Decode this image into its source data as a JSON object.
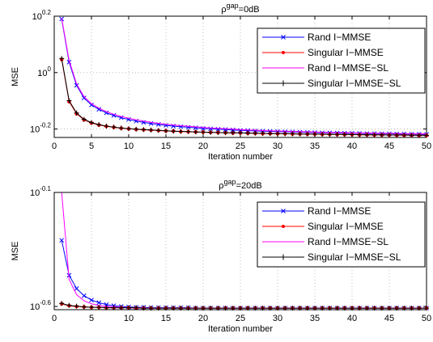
{
  "chart_data": [
    {
      "type": "line",
      "title_prefix": "ρ",
      "title_sup": "gap",
      "title_suffix": "=0dB",
      "xlabel": "Iteration number",
      "ylabel": "MSE",
      "yscale": "log",
      "xlim": [
        0,
        50
      ],
      "ylim": [
        0.589,
        1.585
      ],
      "xticks": [
        0,
        5,
        10,
        15,
        20,
        25,
        30,
        35,
        40,
        45,
        50
      ],
      "yticks": [
        {
          "value": 0.631,
          "base": "10",
          "exp": "-0.2"
        },
        {
          "value": 1.0,
          "base": "10",
          "exp": "0"
        },
        {
          "value": 1.585,
          "base": "10",
          "exp": "0.2"
        }
      ],
      "grid": true,
      "legend_position": "top-right",
      "x": [
        1,
        2,
        3,
        4,
        5,
        6,
        7,
        8,
        9,
        10,
        11,
        12,
        13,
        14,
        15,
        16,
        17,
        18,
        19,
        20,
        21,
        22,
        23,
        24,
        25,
        26,
        27,
        28,
        29,
        30,
        31,
        32,
        33,
        34,
        35,
        36,
        37,
        38,
        39,
        40,
        41,
        42,
        43,
        44,
        45,
        46,
        47,
        48,
        49,
        50
      ],
      "series": [
        {
          "name": "Rand I−MMSE",
          "color": "#0000ff",
          "marker": "x",
          "values": [
            1.549,
            1.089,
            0.901,
            0.813,
            0.768,
            0.741,
            0.72,
            0.705,
            0.692,
            0.682,
            0.673,
            0.666,
            0.66,
            0.655,
            0.65,
            0.646,
            0.643,
            0.64,
            0.637,
            0.634,
            0.632,
            0.63,
            0.628,
            0.626,
            0.624,
            0.623,
            0.621,
            0.62,
            0.619,
            0.618,
            0.617,
            0.616,
            0.615,
            0.614,
            0.613,
            0.612,
            0.612,
            0.611,
            0.61,
            0.61,
            0.609,
            0.608,
            0.608,
            0.607,
            0.607,
            0.606,
            0.606,
            0.605,
            0.605,
            0.604
          ]
        },
        {
          "name": "Singular I−MMSE",
          "color": "#ff0000",
          "marker": "dot",
          "values": [
            1.113,
            0.789,
            0.715,
            0.68,
            0.663,
            0.652,
            0.645,
            0.64,
            0.635,
            0.632,
            0.629,
            0.627,
            0.625,
            0.623,
            0.621,
            0.62,
            0.618,
            0.617,
            0.616,
            0.615,
            0.614,
            0.613,
            0.612,
            0.611,
            0.611,
            0.61,
            0.609,
            0.608,
            0.608,
            0.607,
            0.607,
            0.606,
            0.606,
            0.605,
            0.605,
            0.604,
            0.604,
            0.603,
            0.603,
            0.603,
            0.602,
            0.602,
            0.601,
            0.601,
            0.601,
            0.6,
            0.6,
            0.6,
            0.599,
            0.599
          ]
        },
        {
          "name": "Rand I−MMSE−SL",
          "color": "#ff00ff",
          "marker": "none",
          "values": [
            1.56,
            1.105,
            0.912,
            0.822,
            0.776,
            0.748,
            0.727,
            0.712,
            0.699,
            0.689,
            0.68,
            0.673,
            0.667,
            0.661,
            0.656,
            0.652,
            0.648,
            0.645,
            0.642,
            0.639,
            0.636,
            0.634,
            0.632,
            0.63,
            0.628,
            0.626,
            0.625,
            0.623,
            0.622,
            0.621,
            0.62,
            0.619,
            0.618,
            0.617,
            0.616,
            0.615,
            0.614,
            0.614,
            0.613,
            0.612,
            0.611,
            0.611,
            0.61,
            0.61,
            0.609,
            0.609,
            0.608,
            0.608,
            0.607,
            0.607
          ]
        },
        {
          "name": "Singular I−MMSE−SL",
          "color": "#000000",
          "marker": "plus",
          "values": [
            1.123,
            0.795,
            0.719,
            0.683,
            0.665,
            0.654,
            0.646,
            0.641,
            0.636,
            0.633,
            0.63,
            0.628,
            0.626,
            0.624,
            0.622,
            0.62,
            0.619,
            0.618,
            0.616,
            0.615,
            0.614,
            0.613,
            0.612,
            0.612,
            0.611,
            0.61,
            0.61,
            0.609,
            0.608,
            0.608,
            0.607,
            0.607,
            0.606,
            0.606,
            0.605,
            0.605,
            0.604,
            0.604,
            0.604,
            0.603,
            0.603,
            0.602,
            0.602,
            0.602,
            0.601,
            0.601,
            0.601,
            0.6,
            0.6,
            0.6
          ]
        }
      ]
    },
    {
      "type": "line",
      "title_prefix": "ρ",
      "title_sup": "gap",
      "title_suffix": "=20dB",
      "xlabel": "Iteration number",
      "ylabel": "MSE",
      "yscale": "log",
      "xlim": [
        0,
        50
      ],
      "ylim": [
        0.2432,
        0.7943
      ],
      "xticks": [
        0,
        5,
        10,
        15,
        20,
        25,
        30,
        35,
        40,
        45,
        50
      ],
      "yticks": [
        {
          "value": 0.2512,
          "base": "10",
          "exp": "-0.6"
        },
        {
          "value": 0.7943,
          "base": "10",
          "exp": "-0.1"
        }
      ],
      "grid": true,
      "legend_position": "top-right",
      "x": [
        1,
        2,
        3,
        4,
        5,
        6,
        7,
        8,
        9,
        10,
        11,
        12,
        13,
        14,
        15,
        16,
        17,
        18,
        19,
        20,
        21,
        22,
        23,
        24,
        25,
        26,
        27,
        28,
        29,
        30,
        31,
        32,
        33,
        34,
        35,
        36,
        37,
        38,
        39,
        40,
        41,
        42,
        43,
        44,
        45,
        46,
        47,
        48,
        49,
        50
      ],
      "series": [
        {
          "name": "Rand I−MMSE",
          "color": "#0000ff",
          "marker": "x",
          "values": [
            0.49,
            0.344,
            0.301,
            0.28,
            0.268,
            0.261,
            0.256,
            0.253,
            0.251,
            0.25,
            0.249,
            0.249,
            0.248,
            0.248,
            0.248,
            0.248,
            0.248,
            0.248,
            0.247,
            0.247,
            0.247,
            0.247,
            0.247,
            0.247,
            0.247,
            0.247,
            0.247,
            0.247,
            0.247,
            0.247,
            0.247,
            0.247,
            0.247,
            0.247,
            0.247,
            0.247,
            0.247,
            0.247,
            0.247,
            0.247,
            0.247,
            0.247,
            0.247,
            0.247,
            0.247,
            0.247,
            0.247,
            0.247,
            0.247,
            0.247
          ]
        },
        {
          "name": "Singular I−MMSE",
          "color": "#ff0000",
          "marker": "dot",
          "values": [
            0.258,
            0.253,
            0.251,
            0.25,
            0.249,
            0.249,
            0.248,
            0.248,
            0.248,
            0.248,
            0.247,
            0.247,
            0.247,
            0.247,
            0.247,
            0.247,
            0.247,
            0.247,
            0.247,
            0.247,
            0.247,
            0.247,
            0.247,
            0.247,
            0.247,
            0.247,
            0.247,
            0.247,
            0.247,
            0.247,
            0.247,
            0.247,
            0.247,
            0.247,
            0.247,
            0.247,
            0.247,
            0.247,
            0.247,
            0.247,
            0.247,
            0.247,
            0.247,
            0.247,
            0.247,
            0.247,
            0.247,
            0.247,
            0.247,
            0.247
          ]
        },
        {
          "name": "Rand I−MMSE−SL",
          "color": "#ff00ff",
          "marker": "none",
          "values": [
            0.794,
            0.33,
            0.283,
            0.266,
            0.258,
            0.254,
            0.251,
            0.25,
            0.249,
            0.248,
            0.248,
            0.248,
            0.247,
            0.247,
            0.247,
            0.247,
            0.247,
            0.247,
            0.247,
            0.247,
            0.247,
            0.247,
            0.247,
            0.247,
            0.247,
            0.247,
            0.247,
            0.247,
            0.247,
            0.247,
            0.247,
            0.247,
            0.247,
            0.247,
            0.247,
            0.247,
            0.247,
            0.247,
            0.247,
            0.247,
            0.247,
            0.247,
            0.247,
            0.247,
            0.247,
            0.247,
            0.247,
            0.247,
            0.247,
            0.247
          ]
        },
        {
          "name": "Singular I−MMSE−SL",
          "color": "#000000",
          "marker": "plus",
          "values": [
            0.259,
            0.254,
            0.252,
            0.25,
            0.249,
            0.249,
            0.248,
            0.248,
            0.248,
            0.248,
            0.248,
            0.247,
            0.247,
            0.247,
            0.247,
            0.247,
            0.247,
            0.247,
            0.247,
            0.247,
            0.247,
            0.247,
            0.247,
            0.247,
            0.247,
            0.247,
            0.247,
            0.247,
            0.247,
            0.247,
            0.247,
            0.247,
            0.247,
            0.247,
            0.247,
            0.247,
            0.247,
            0.247,
            0.247,
            0.247,
            0.247,
            0.247,
            0.247,
            0.247,
            0.247,
            0.247,
            0.247,
            0.247,
            0.247,
            0.247
          ]
        }
      ]
    }
  ]
}
